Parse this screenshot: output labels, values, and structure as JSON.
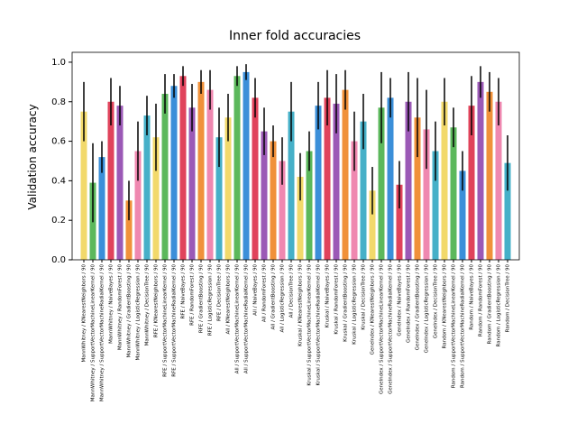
{
  "chart_data": {
    "type": "bar",
    "title": "Inner fold accuracies",
    "ylabel": "Validation accuracy",
    "categories": [
      "MannWhitney / KNearestNeighbors / 90",
      "MannWhitney / SupportVectorMachineLinearKernel / 90",
      "MannWhitney / SupportVectorMachineRadialKernel / 90",
      "MannWhitney / NaiveBayes / 90",
      "MannWhitney / RandomForest / 90",
      "MannWhitney / GradientBoosting / 90",
      "MannWhitney / LogisticRegression / 90",
      "MannWhitney / DecisionTree / 90",
      "RFE / KNearestNeighbors / 90",
      "RFE / SupportVectorMachineLinearKernel / 90",
      "RFE / SupportVectorMachineRadialKernel / 90",
      "RFE / NaiveBayes / 90",
      "RFE / RandomForest / 90",
      "RFE / GradientBoosting / 90",
      "RFE / LogisticRegression / 90",
      "RFE / DecisionTree / 90",
      "All / KNearestNeighbors / 90",
      "All / SupportVectorMachineLinearKernel / 90",
      "All / SupportVectorMachineRadialKernel / 90",
      "All / NaiveBayes / 90",
      "All / RandomForest / 90",
      "All / GradientBoosting / 90",
      "All / LogisticRegression / 90",
      "All / DecisionTree / 90",
      "Kruskal / KNearestNeighbors / 90",
      "Kruskal / SupportVectorMachineLinearKernel / 90",
      "Kruskal / SupportVectorMachineRadialKernel / 90",
      "Kruskal / NaiveBayes / 90",
      "Kruskal / RandomForest / 90",
      "Kruskal / GradientBoosting / 90",
      "Kruskal / LogisticRegression / 90",
      "Kruskal / DecisionTree / 90",
      "GeneIndex / KNearestNeighbors / 90",
      "GeneIndex / SupportVectorMachineLinearKernel / 90",
      "GeneIndex / SupportVectorMachineRadialKernel / 90",
      "GeneIndex / NaiveBayes / 90",
      "GeneIndex / RandomForest / 90",
      "GeneIndex / GradientBoosting / 90",
      "GeneIndex / LogisticRegression / 90",
      "GeneIndex / DecisionTree / 90",
      "Random / KNearestNeighbors / 90",
      "Random / SupportVectorMachineLinearKernel / 90",
      "Random / SupportVectorMachineRadialKernel / 90",
      "Random / NaiveBayes / 90",
      "Random / RandomForest / 90",
      "Random / GradientBoosting / 90",
      "Random / LogisticRegression / 90",
      "Random / DecisionTree / 90"
    ],
    "values": [
      0.75,
      0.39,
      0.52,
      0.8,
      0.78,
      0.3,
      0.55,
      0.73,
      0.62,
      0.84,
      0.88,
      0.93,
      0.77,
      0.9,
      0.86,
      0.62,
      0.72,
      0.93,
      0.95,
      0.82,
      0.65,
      0.6,
      0.5,
      0.75,
      0.42,
      0.55,
      0.78,
      0.82,
      0.79,
      0.86,
      0.6,
      0.7,
      0.35,
      0.77,
      0.82,
      0.38,
      0.8,
      0.72,
      0.66,
      0.55,
      0.8,
      0.67,
      0.45,
      0.78,
      0.9,
      0.85,
      0.8,
      0.49
    ],
    "errors": [
      0.15,
      0.2,
      0.08,
      0.12,
      0.1,
      0.1,
      0.15,
      0.1,
      0.17,
      0.1,
      0.06,
      0.05,
      0.12,
      0.06,
      0.1,
      0.15,
      0.12,
      0.05,
      0.04,
      0.1,
      0.12,
      0.08,
      0.12,
      0.15,
      0.12,
      0.1,
      0.12,
      0.14,
      0.15,
      0.1,
      0.15,
      0.14,
      0.12,
      0.18,
      0.1,
      0.12,
      0.15,
      0.2,
      0.2,
      0.15,
      0.12,
      0.1,
      0.1,
      0.15,
      0.08,
      0.1,
      0.12,
      0.14
    ],
    "palette": [
      "#f2d96b",
      "#5cb85c",
      "#3b8fd9",
      "#e0435b",
      "#9b59b6",
      "#f0913a",
      "#ef88b0",
      "#46b0c8"
    ],
    "ylim": [
      0,
      1.05
    ],
    "yticks": [
      {
        "value": 0,
        "label": "0.0"
      },
      0.2,
      0.4,
      0.6,
      0.8,
      {
        "value": 1,
        "label": "1.0"
      }
    ]
  }
}
